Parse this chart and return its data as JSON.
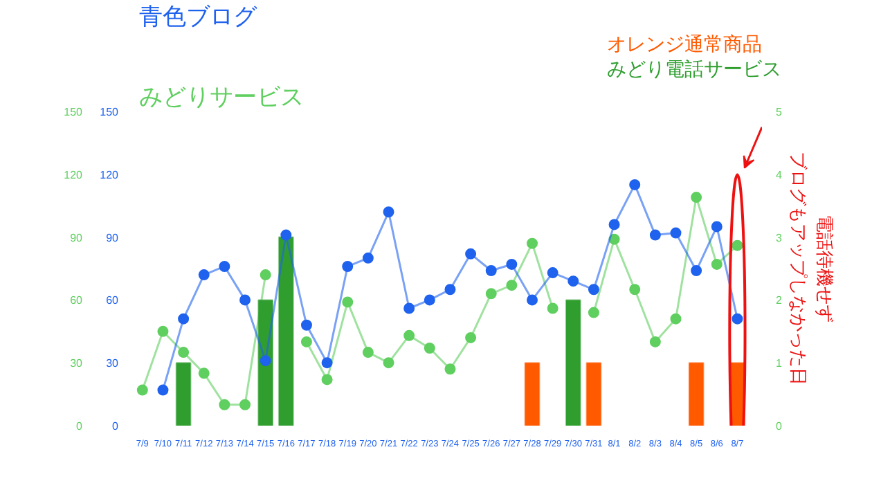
{
  "chart_data": {
    "type": "line",
    "categories": [
      "7/9",
      "7/10",
      "7/11",
      "7/12",
      "7/13",
      "7/14",
      "7/15",
      "7/16",
      "7/17",
      "7/18",
      "7/19",
      "7/20",
      "7/21",
      "7/22",
      "7/23",
      "7/24",
      "7/25",
      "7/26",
      "7/27",
      "7/28",
      "7/29",
      "7/30",
      "7/31",
      "8/1",
      "8/2",
      "8/3",
      "8/4",
      "8/5",
      "8/6",
      "8/7"
    ],
    "ylim": [
      0,
      150
    ],
    "yticks": [
      0,
      30,
      60,
      90,
      120,
      150
    ],
    "y3lim": [
      0,
      150
    ],
    "y3ticks": [
      0,
      30,
      60,
      90,
      120,
      150
    ],
    "y2lim": [
      0,
      5
    ],
    "y2ticks": [
      0,
      1,
      2,
      3,
      4,
      5
    ],
    "marker": "circle",
    "grid": false,
    "series": [
      {
        "name": "みどりサービス",
        "color": "#5fcf5f",
        "values": [
          17,
          45,
          35,
          25,
          10,
          10,
          72,
          null,
          40,
          22,
          59,
          35,
          30,
          43,
          37,
          27,
          42,
          63,
          67,
          87,
          56,
          null,
          54,
          89,
          65,
          40,
          51,
          109,
          77,
          86
        ]
      },
      {
        "name": "オレンジ通常商品",
        "type": "bar",
        "axis": "y2",
        "color": "#ff5a00",
        "values": [
          null,
          null,
          null,
          null,
          null,
          null,
          null,
          null,
          null,
          null,
          null,
          null,
          null,
          null,
          null,
          null,
          null,
          null,
          null,
          1,
          null,
          null,
          1,
          null,
          null,
          null,
          null,
          1,
          null,
          1
        ]
      },
      {
        "name": "みどり電話サービス",
        "type": "bar",
        "axis": "y2",
        "color": "#2f9e2f",
        "values": [
          null,
          null,
          1,
          null,
          null,
          null,
          2,
          3,
          null,
          null,
          null,
          null,
          null,
          null,
          null,
          null,
          null,
          null,
          null,
          null,
          null,
          2,
          null,
          null,
          null,
          null,
          null,
          null,
          null,
          null
        ]
      },
      {
        "name": "青色ブログ",
        "color": "#1f62ee",
        "values": [
          null,
          17,
          51,
          72,
          76,
          60,
          31,
          91,
          48,
          30,
          76,
          80,
          102,
          56,
          60,
          65,
          82,
          74,
          77,
          60,
          73,
          69,
          65,
          96,
          115,
          91,
          92,
          74,
          95,
          51
        ]
      }
    ],
    "annotations": [
      "電話待機せず",
      "ブログもアップしなかった日"
    ]
  }
}
